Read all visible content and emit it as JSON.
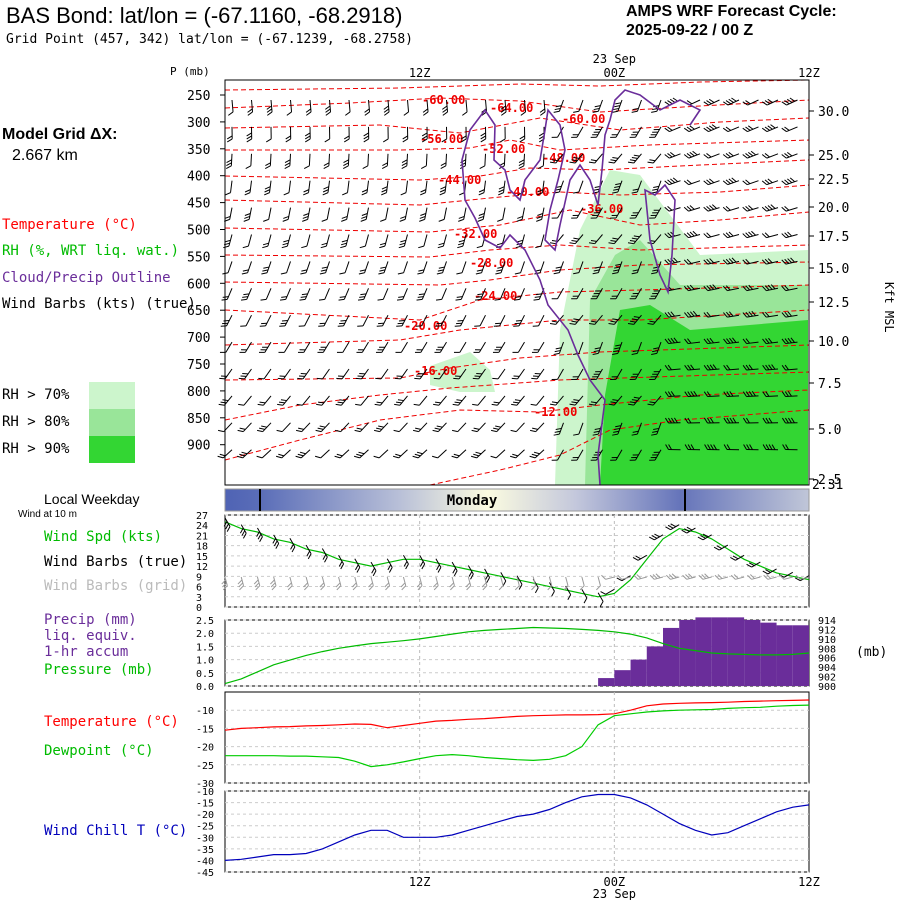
{
  "header": {
    "title": "BAS Bond:  lat/lon = (-67.1160, -68.2918)",
    "grid_point": "Grid Point (457, 342) lat/lon = (-67.1239, -68.2758)",
    "forecast_line1": "AMPS WRF Forecast Cycle:",
    "forecast_line2": "2025-09-22 / 00  Z"
  },
  "model_grid": {
    "label": "Model Grid ΔX:",
    "value": "2.667 km"
  },
  "legend_main": {
    "temperature": "Temperature (°C)",
    "rh": "RH (%, WRT liq. wat.)",
    "cloud": "Cloud/Precip Outline",
    "wind": "Wind Barbs (kts) (true)"
  },
  "rh_legend": [
    {
      "label": "RH > 70%",
      "color": "#ccf5cc"
    },
    {
      "label": "RH > 80%",
      "color": "#99e599"
    },
    {
      "label": "RH > 90%",
      "color": "#33d633"
    }
  ],
  "colors": {
    "temperature": "#ff0000",
    "cloud": "#6a2d9a",
    "dewpoint": "#00cc00",
    "pressure": "#00bb00",
    "precip": "#6a2d9a",
    "windchill": "#0000bb",
    "wind_speed": "#00bb00",
    "wind_grid": "#999999"
  },
  "time_axis": {
    "top_ticks": [
      "12Z",
      "00Z",
      "12Z"
    ],
    "date_label": "23 Sep",
    "bottom_ticks": [
      "12Z",
      "00Z",
      "12Z"
    ]
  },
  "main_panel": {
    "p_label": "P (mb)",
    "right_axis_label": "Kft MSL",
    "pressure_ticks": [
      "250",
      "300",
      "350",
      "400",
      "450",
      "500",
      "550",
      "600",
      "650",
      "700",
      "750",
      "800",
      "850",
      "900"
    ],
    "height_ticks": [
      "30.0",
      "25.0",
      "22.5",
      "20.0",
      "17.5",
      "15.0",
      "12.5",
      "10.0",
      "7.5",
      "5.0",
      "2.5"
    ],
    "surface_height": "2.31"
  },
  "weekday_bar": {
    "label": "Local Weekday",
    "day": "Monday"
  },
  "wind_panel": {
    "subtitle": "Wind at 10 m",
    "l1": "Wind Spd (kts)",
    "l2": "Wind Barbs (true)",
    "l3": "Wind Barbs (grid)",
    "yticks": [
      "27",
      "24",
      "21",
      "18",
      "15",
      "12",
      "9",
      "6",
      "3",
      "0"
    ]
  },
  "precip_panel": {
    "l1": "Precip (mm)",
    "l2": "liq. equiv.",
    "l3": "1-hr accum",
    "l4": "Pressure (mb)",
    "unit": "(mb)",
    "left_ticks": [
      "2.5",
      "2.0",
      "1.5",
      "1.0",
      "0.5",
      "0.0"
    ],
    "right_ticks": [
      "914",
      "912",
      "910",
      "908",
      "906",
      "904",
      "902",
      "900"
    ]
  },
  "temp_panel": {
    "l1": "Temperature (°C)",
    "l2": "Dewpoint (°C)",
    "yticks": [
      "-10",
      "-15",
      "-20",
      "-25",
      "-30"
    ]
  },
  "chill_panel": {
    "l1": "Wind Chill T (°C)",
    "yticks": [
      "-10",
      "-15",
      "-20",
      "-25",
      "-30",
      "-35",
      "-40",
      "-45"
    ]
  },
  "chart_data": {
    "type": "line",
    "x_hours": [
      0,
      1,
      2,
      3,
      4,
      5,
      6,
      7,
      8,
      9,
      10,
      11,
      12,
      13,
      14,
      15,
      15,
      17,
      18,
      19,
      20,
      21,
      22,
      23,
      24,
      25,
      26,
      27,
      28,
      29,
      30,
      31,
      32,
      33,
      34,
      35,
      36
    ],
    "temperature_isotherm_labels": [
      "-60.00",
      "-64.00",
      "-60.00",
      "-56.00",
      "-52.00",
      "-48.00",
      "-44.00",
      "-40.00",
      "-36.00",
      "-32.00",
      "-28.00",
      "-24.00",
      "-20.00",
      "-16.00",
      "-12.00"
    ],
    "wind_speed_kts": [
      25,
      23,
      22,
      20,
      19,
      17,
      16,
      14,
      13,
      12,
      13,
      14,
      14,
      13,
      12,
      11,
      10,
      9,
      8,
      7,
      6,
      5,
      4,
      3,
      4,
      8,
      14,
      20,
      23,
      22,
      20,
      17,
      14,
      12,
      10,
      9,
      8
    ],
    "precip_mm_hours": [
      24,
      25,
      26,
      27,
      28,
      29,
      30,
      31,
      32,
      33,
      34,
      35,
      36
    ],
    "precip_mm": [
      0.3,
      0.6,
      1.0,
      1.5,
      2.2,
      2.5,
      2.6,
      2.6,
      2.6,
      2.5,
      2.4,
      2.3,
      2.3
    ],
    "pressure_mb": [
      900.5,
      901.5,
      903,
      904.5,
      905.5,
      906.5,
      907.3,
      908,
      908.5,
      909,
      909.3,
      909.6,
      910,
      910.5,
      911,
      911.5,
      911.8,
      912,
      912.2,
      912.4,
      912.3,
      912.2,
      912,
      911.8,
      911.5,
      911,
      910.2,
      909,
      908,
      907.5,
      907,
      906.8,
      906.7,
      906.6,
      906.6,
      906.7,
      907
    ],
    "temperature_c": [
      -15.5,
      -15,
      -14.8,
      -14.6,
      -14.5,
      -14.3,
      -14.2,
      -14,
      -13.8,
      -13.9,
      -14.8,
      -14.2,
      -13.6,
      -13,
      -12.8,
      -12.5,
      -12.3,
      -12,
      -11.7,
      -11.5,
      -11.4,
      -11.3,
      -11.3,
      -11.2,
      -11,
      -10,
      -8.8,
      -8.3,
      -8.1,
      -8,
      -7.9,
      -7.8,
      -7.6,
      -7.5,
      -7.4,
      -7.3,
      -7.2
    ],
    "dewpoint_c": [
      -22.5,
      -22.5,
      -22.5,
      -22.5,
      -22.6,
      -22.6,
      -22.8,
      -23,
      -24,
      -25.5,
      -25,
      -24.2,
      -23.3,
      -22.5,
      -22.2,
      -22.5,
      -23,
      -23.3,
      -23.6,
      -23.8,
      -23.5,
      -22.5,
      -20,
      -14,
      -11.5,
      -11,
      -10.5,
      -10.2,
      -10,
      -9.9,
      -9.8,
      -9.5,
      -9.3,
      -9.2,
      -8.9,
      -8.7,
      -8.6
    ],
    "wind_chill_c": [
      -40,
      -39.5,
      -38.5,
      -37.5,
      -37.5,
      -37,
      -35,
      -32,
      -29,
      -27,
      -27,
      -30,
      -30,
      -30,
      -29,
      -27,
      -25,
      -23,
      -21,
      -20,
      -18,
      -15,
      -12.5,
      -11.5,
      -11.5,
      -13,
      -16,
      -20,
      -24,
      -27,
      -29,
      -28,
      -25,
      -22,
      -19,
      -17,
      -16
    ],
    "ylim_wind": [
      0,
      27
    ],
    "ylim_precip": [
      0,
      2.5
    ],
    "ylim_pressure": [
      900,
      914
    ],
    "ylim_temp": [
      -30,
      -5
    ],
    "ylim_chill": [
      -45,
      -10
    ]
  }
}
